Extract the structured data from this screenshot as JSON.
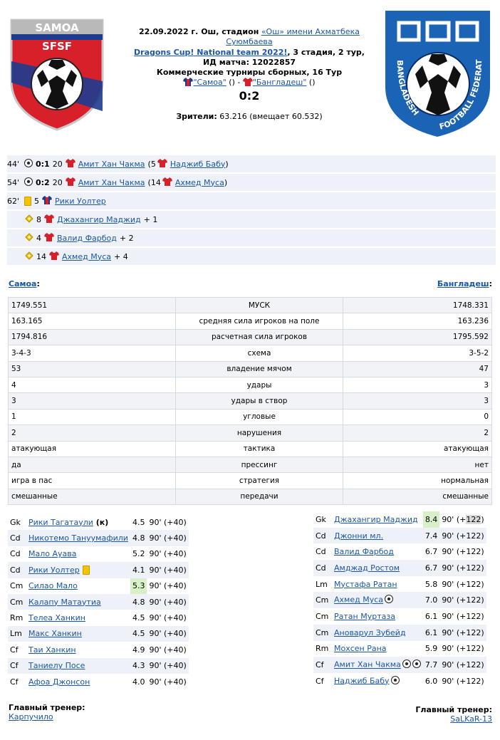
{
  "header": {
    "date_place": "22.09.2022 г. Ош, стадион",
    "stadium_link": "«Ош» имени Ахматбека Суюмбаева",
    "tournament_link": "Dragons Cup! National team 2022!",
    "stage": ", 3 стадия, 2 тур,",
    "match_id": "ИД матча: 12022857",
    "tour_type": "Коммерческие турниры сборных, 16 Тур",
    "home_team_quoted": "\"Самоа\"",
    "home_paren": " () - ",
    "away_team_quoted": "\"Бангладеш\"",
    "away_paren": " ()",
    "score": "0:2",
    "spectators_label": "Зрители:",
    "spectators_value": " 63.216 (вмещает 60.532)"
  },
  "logos": {
    "home_name": "SAMOA",
    "home_abbr": "SFSF",
    "away_name": "BANGLADESH FOOTBALL FEDERATION",
    "away_glyphs": "বাফুফে"
  },
  "events": [
    {
      "minute": "44'",
      "type": "goal-icon",
      "score": "0:1",
      "number": "20",
      "player": "Амит Хан Чакма",
      "assist_open": " (5",
      "assist": "Наджиб Бабу",
      "assist_close": ")"
    },
    {
      "minute": "54'",
      "type": "goal-icon",
      "score": "0:2",
      "number": "20",
      "player": "Амит Хан Чакма",
      "assist_open": " (14",
      "assist": "Ахмед Муса",
      "assist_close": ")"
    },
    {
      "minute": "62'",
      "type": "yellow-card-icon",
      "number": "5",
      "player": "Рики Уолтер"
    }
  ],
  "bonus_events": [
    {
      "number": "8",
      "player": "Джахангир Маджид",
      "bonus": "+ 1"
    },
    {
      "number": "4",
      "player": "Валид Фарбод",
      "bonus": "+ 2"
    },
    {
      "number": "14",
      "player": "Ахмед Муса",
      "bonus": "+ 4"
    }
  ],
  "teams": {
    "home": "Самоа",
    "away": "Бангладеш",
    "colon": ":"
  },
  "stats": [
    {
      "home": "1749.551",
      "label": "МУСК",
      "away": "1748.331"
    },
    {
      "home": "163.165",
      "label": "средняя сила игроков на поле",
      "away": "163.236"
    },
    {
      "home": "1794.816",
      "label": "расчетная сила игроков",
      "away": "1795.592"
    },
    {
      "home": "3-4-3",
      "label": "схема",
      "away": "3-5-2"
    },
    {
      "home": "53",
      "label": "владение мячом",
      "away": "47"
    },
    {
      "home": "4",
      "label": "удары",
      "away": "3"
    },
    {
      "home": "3",
      "label": "удары в створ",
      "away": "3"
    },
    {
      "home": "1",
      "label": "угловые",
      "away": "0"
    },
    {
      "home": "2",
      "label": "нарушения",
      "away": "2"
    },
    {
      "home": "атакующая",
      "label": "тактика",
      "away": "атакующая"
    },
    {
      "home": "да",
      "label": "прессинг",
      "away": "нет"
    },
    {
      "home": "игра в пас",
      "label": "стратегия",
      "away": "нормальная"
    },
    {
      "home": "смешанные",
      "label": "передачи",
      "away": "смешанные"
    }
  ],
  "home_lineup": [
    {
      "pos": "Gk",
      "name": "Рики Тагатаули",
      "extra": " (к)",
      "rating": "4.5",
      "minutes": "90' (+40)"
    },
    {
      "pos": "Cd",
      "name": "Никотемо Тануумафили",
      "rating": "4.8",
      "minutes": "90' (+40)"
    },
    {
      "pos": "Cd",
      "name": "Мало Ауава",
      "rating": "5.2",
      "minutes": "90' (+40)"
    },
    {
      "pos": "Cd",
      "name": "Рики Уолтер",
      "yellow": true,
      "rating": "4.1",
      "minutes": "90' (+40)"
    },
    {
      "pos": "Cm",
      "name": "Силао Мало",
      "rating": "5.3",
      "best": true,
      "minutes": "90' (+40)"
    },
    {
      "pos": "Cm",
      "name": "Калапу Матаутиа",
      "rating": "4.8",
      "minutes": "90' (+40)"
    },
    {
      "pos": "Rm",
      "name": "Телеа Ханкин",
      "rating": "4.5",
      "minutes": "90' (+40)"
    },
    {
      "pos": "Lm",
      "name": "Макс Ханкин",
      "rating": "4.5",
      "minutes": "90' (+40)"
    },
    {
      "pos": "Cf",
      "name": "Таи Ханкин",
      "rating": "4.9",
      "minutes": "90' (+40)"
    },
    {
      "pos": "Cf",
      "name": "Таниелу Посе",
      "rating": "4.3",
      "minutes": "90' (+40)"
    },
    {
      "pos": "Cf",
      "name": "Афоа Джонсон",
      "rating": "4.0",
      "minutes": "90' (+40)"
    }
  ],
  "away_lineup": [
    {
      "pos": "Gk",
      "name": "Джахангир Маджид",
      "rating": "8.4",
      "best": true,
      "minutes_pre": "90' (+",
      "minutes_hl": "122",
      "minutes_post": ")"
    },
    {
      "pos": "Cd",
      "name": "Джонни мл.",
      "rating": "7.4",
      "minutes": "90' (+122)"
    },
    {
      "pos": "Cd",
      "name": "Валид Фарбод",
      "rating": "6.7",
      "minutes": "90' (+122)"
    },
    {
      "pos": "Cd",
      "name": "Амджад Ростом",
      "rating": "6.7",
      "minutes": "90' (+122)"
    },
    {
      "pos": "Lm",
      "name": "Мустафа Ратан",
      "rating": "5.8",
      "minutes": "90' (+122)"
    },
    {
      "pos": "Cm",
      "name": "Ахмед Муса",
      "balls": 1,
      "rating": "7.0",
      "minutes": "90' (+122)"
    },
    {
      "pos": "Cm",
      "name": "Ратан Муртаза",
      "rating": "6.1",
      "minutes": "90' (+122)"
    },
    {
      "pos": "Cm",
      "name": "Ановарул Зубейд",
      "rating": "6.1",
      "minutes": "90' (+122)"
    },
    {
      "pos": "Rm",
      "name": "Мохсен Рана",
      "rating": "5.9",
      "minutes": "90' (+122)"
    },
    {
      "pos": "Cf",
      "name": "Амит Хан Чакма",
      "balls": 2,
      "rating": "7.7",
      "minutes": "90' (+122)"
    },
    {
      "pos": "Cf",
      "name": "Наджиб Бабу",
      "balls": 1,
      "rating": "6.0",
      "minutes": "90' (+122)"
    }
  ],
  "coaches": {
    "title": "Главный тренер:",
    "home": "Карпучило",
    "away": "SaLKaR-13"
  },
  "colors": {
    "link": "#1a57a8",
    "row_alt": "#eef1f7",
    "best_rating": "#d8f0c8",
    "samoa_red": "#d8202a",
    "samoa_blue": "#1d3c8f",
    "bangladesh_blue": "#1b63b4"
  }
}
